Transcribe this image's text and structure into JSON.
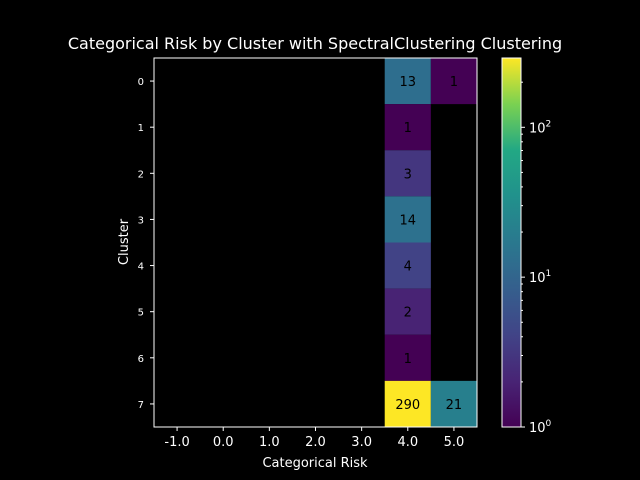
{
  "chart_data": {
    "type": "heatmap",
    "title": "Categorical Risk by Cluster with SpectralClustering Clustering",
    "xlabel": "Categorical Risk",
    "ylabel": "Cluster",
    "x_categories": [
      "-1.0",
      "0.0",
      "1.0",
      "2.0",
      "3.0",
      "4.0",
      "5.0"
    ],
    "y_categories": [
      "0",
      "1",
      "2",
      "3",
      "4",
      "5",
      "6",
      "7"
    ],
    "cells": [
      {
        "x": "4.0",
        "y": "0",
        "value": 13
      },
      {
        "x": "5.0",
        "y": "0",
        "value": 1
      },
      {
        "x": "4.0",
        "y": "1",
        "value": 1
      },
      {
        "x": "4.0",
        "y": "2",
        "value": 3
      },
      {
        "x": "4.0",
        "y": "3",
        "value": 14
      },
      {
        "x": "4.0",
        "y": "4",
        "value": 4
      },
      {
        "x": "4.0",
        "y": "5",
        "value": 2
      },
      {
        "x": "4.0",
        "y": "6",
        "value": 1
      },
      {
        "x": "4.0",
        "y": "7",
        "value": 290
      },
      {
        "x": "5.0",
        "y": "7",
        "value": 21
      }
    ],
    "colorbar": {
      "scale": "log",
      "colormap": "viridis",
      "range": [
        1,
        290
      ],
      "ticks": [
        {
          "value": 1,
          "base": "10",
          "exp": "0"
        },
        {
          "value": 10,
          "base": "10",
          "exp": "1"
        },
        {
          "value": 100,
          "base": "10",
          "exp": "2"
        }
      ]
    },
    "colors": {
      "background": "#000000",
      "foreground": "#ffffff"
    }
  }
}
